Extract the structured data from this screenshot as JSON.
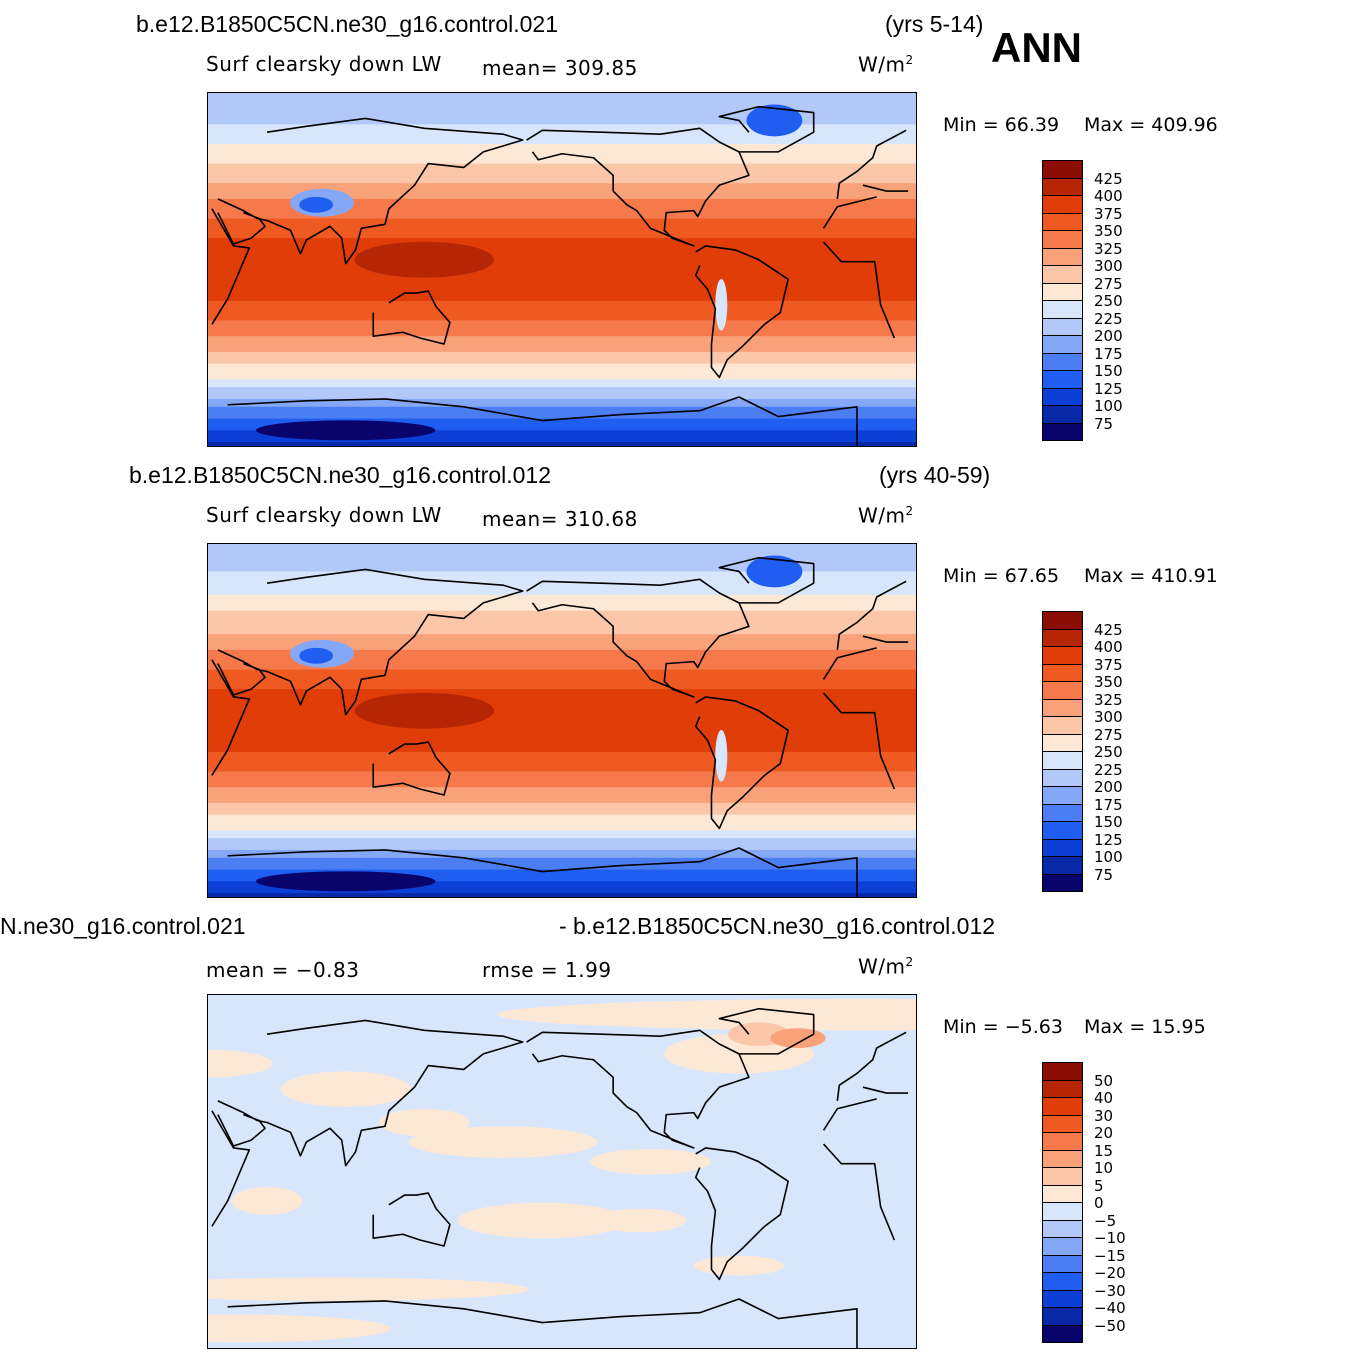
{
  "colors": {
    "abs_scale": [
      "#08046b",
      "#0828a8",
      "#0c3fd6",
      "#1f5ef0",
      "#4a7ef2",
      "#84a8f6",
      "#b2c8f8",
      "#d8e6fb",
      "#fde8d6",
      "#fcc6a8",
      "#f9a27a",
      "#f6794c",
      "#ee5a22",
      "#e03d08",
      "#b62605",
      "#8a0e04"
    ],
    "diff_scale": [
      "#08046b",
      "#0828a8",
      "#0c3fd6",
      "#1f5ef0",
      "#4a7ef2",
      "#84a8f6",
      "#b2c8f8",
      "#d8e6fb",
      "#fde8d6",
      "#fcc6a8",
      "#f9a27a",
      "#f6794c",
      "#ee5a22",
      "#e03d08",
      "#b62605",
      "#8a0e04"
    ]
  },
  "header": {
    "season": "ANN"
  },
  "chart_data": [
    {
      "type": "heatmap",
      "case": "b.e12.B1850C5CN.ne30_g16.control.021",
      "years": "(yrs 5-14)",
      "variable": "Surf  clearsky  down  LW",
      "mean_text": "mean=  309.85",
      "units": "W/m",
      "units_sup": "2",
      "min_text": "Min  =    66.39",
      "max_text": "Max  =  409.96",
      "levels": [
        "425",
        "400",
        "375",
        "350",
        "325",
        "300",
        "275",
        "250",
        "225",
        "200",
        "175",
        "150",
        "125",
        "100",
        "75"
      ],
      "min": 66.39,
      "max": 409.96,
      "mean": 309.85,
      "lat_profile": {
        "lat": [
          90,
          70,
          60,
          45,
          30,
          15,
          5,
          -5,
          -15,
          -30,
          -45,
          -55,
          -65,
          -75,
          -90
        ],
        "value": [
          205,
          230,
          262,
          295,
          340,
          378,
          395,
          392,
          378,
          340,
          288,
          250,
          205,
          150,
          90
        ]
      }
    },
    {
      "type": "heatmap",
      "case": "b.e12.B1850C5CN.ne30_g16.control.012",
      "years": "(yrs 40-59)",
      "variable": "Surf  clearsky  down  LW",
      "mean_text": "mean=  310.68",
      "units": "W/m",
      "units_sup": "2",
      "min_text": "Min  =    67.65",
      "max_text": "Max  =  410.91",
      "levels": [
        "425",
        "400",
        "375",
        "350",
        "325",
        "300",
        "275",
        "250",
        "225",
        "200",
        "175",
        "150",
        "125",
        "100",
        "75"
      ],
      "min": 67.65,
      "max": 410.91,
      "mean": 310.68,
      "lat_profile": {
        "lat": [
          90,
          70,
          60,
          45,
          30,
          15,
          5,
          -5,
          -15,
          -30,
          -45,
          -55,
          -65,
          -75,
          -90
        ],
        "value": [
          206,
          232,
          264,
          297,
          342,
          380,
          396,
          394,
          380,
          342,
          290,
          252,
          206,
          152,
          92
        ]
      }
    },
    {
      "type": "heatmap",
      "case_left": "N.ne30_g16.control.021",
      "case_right": "- b.e12.B1850C5CN.ne30_g16.control.012",
      "mean_text": "mean =    −0.83",
      "rmse_text": "rmse  =     1.99",
      "units": "W/m",
      "units_sup": "2",
      "min_text": "Min  =    −5.63",
      "max_text": "Max  =    15.95",
      "levels": [
        "50",
        "40",
        "30",
        "20",
        "15",
        "10",
        "5",
        "0",
        "−5",
        "−10",
        "−15",
        "−20",
        "−30",
        "−40",
        "−50"
      ],
      "min": -5.63,
      "max": 15.95,
      "mean": -0.83,
      "rmse": 1.99
    }
  ]
}
